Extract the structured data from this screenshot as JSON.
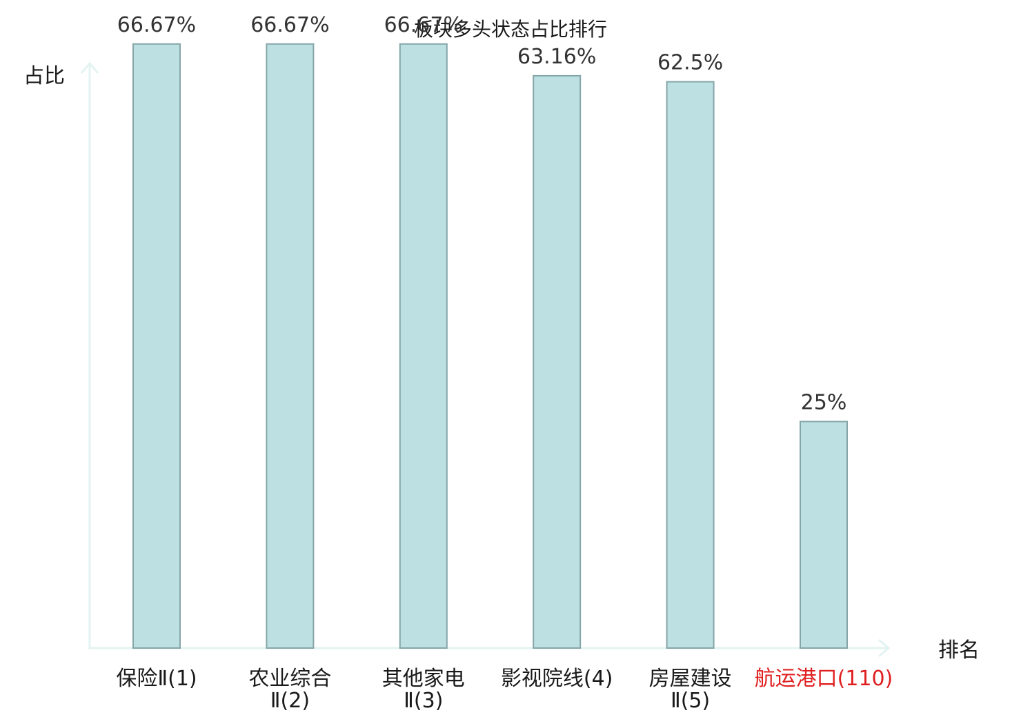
{
  "chart_data": {
    "type": "bar",
    "title": "板块多头状态占比排行",
    "xlabel": "排名",
    "ylabel": "占比",
    "ylim": [
      0,
      70
    ],
    "grid": false,
    "categories": [
      [
        "保险Ⅱ(1)"
      ],
      [
        "农业综合",
        "Ⅱ(2)"
      ],
      [
        "其他家电",
        "Ⅱ(3)"
      ],
      [
        "影视院线(4)"
      ],
      [
        "房屋建设",
        "Ⅱ(5)"
      ],
      [
        "航运港口(110)"
      ]
    ],
    "values": [
      66.67,
      66.67,
      66.67,
      63.16,
      62.5,
      25
    ],
    "value_labels": [
      "66.67%",
      "66.67%",
      "66.67%",
      "63.16%",
      "62.5%",
      "25%"
    ],
    "highlight_index": 5,
    "colors": {
      "bar_fill": "#bde0e2",
      "bar_stroke": "#86a5a8",
      "axis": "#e3f3f1",
      "highlight_text": "#e02020",
      "text": "#1a1a1a",
      "value_text": "#333333"
    }
  }
}
